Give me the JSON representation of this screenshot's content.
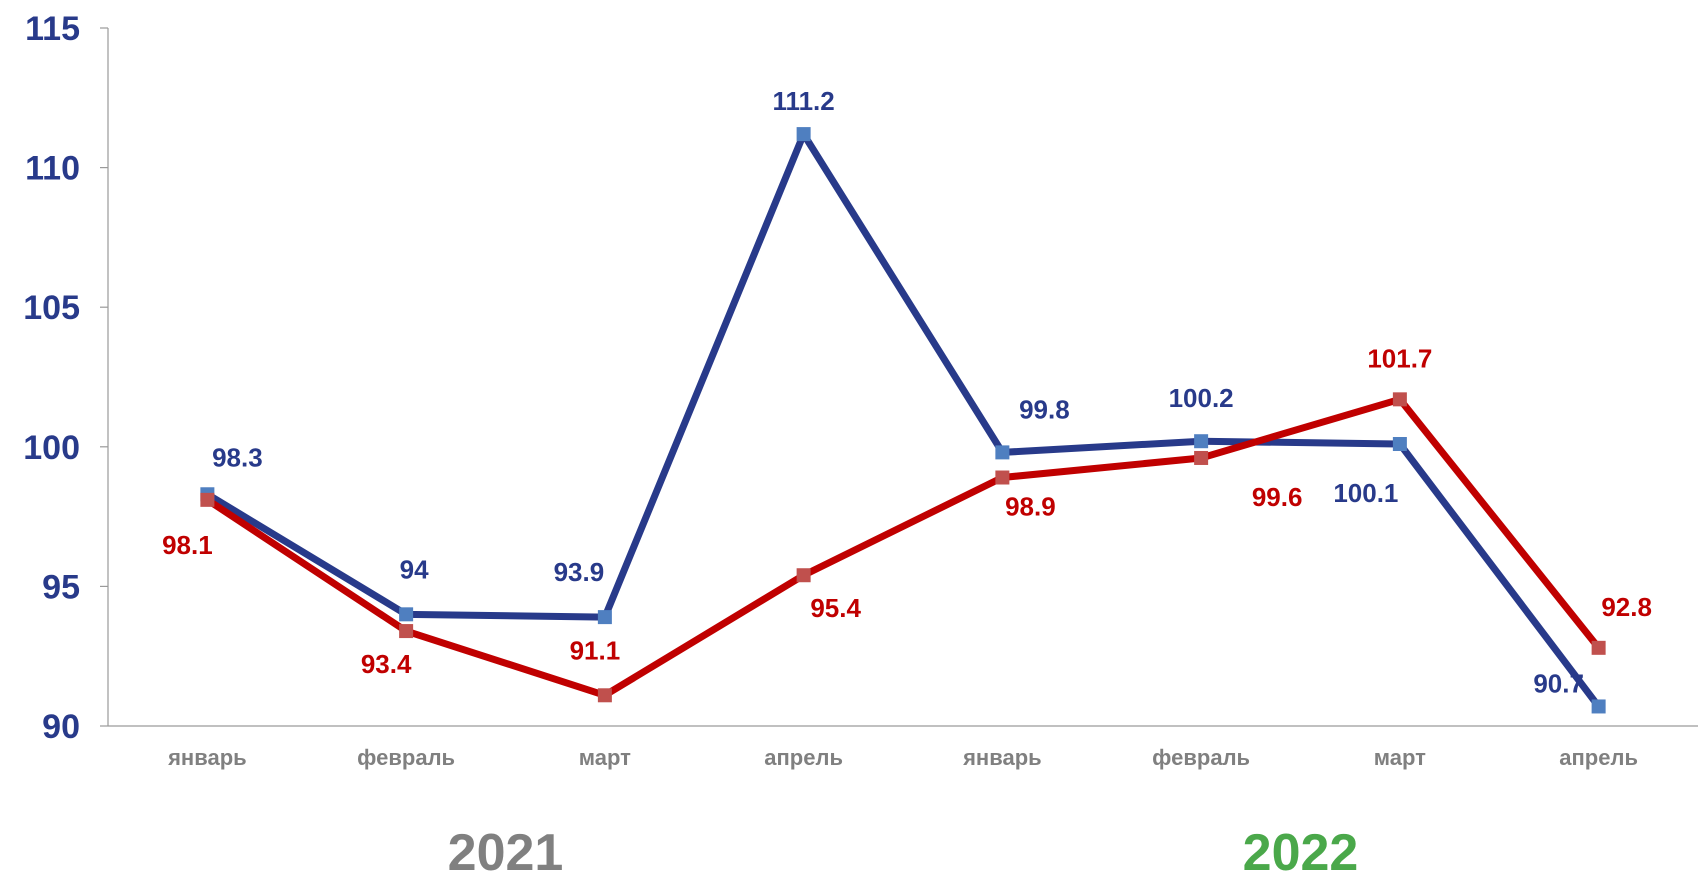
{
  "chart_data": {
    "type": "line",
    "categories": [
      "январь",
      "февраль",
      "март",
      "апрель",
      "январь",
      "февраль",
      "март",
      "апрель"
    ],
    "groups": [
      {
        "label": "2021",
        "color": "#808080"
      },
      {
        "label": "2022",
        "color": "#4aa84a"
      }
    ],
    "series": [
      {
        "values": [
          98.3,
          94,
          93.9,
          111.2,
          99.8,
          100.2,
          100.1,
          90.7
        ],
        "color": "#283a8a",
        "marker_color": "#4f7fc0"
      },
      {
        "values": [
          98.1,
          93.4,
          91.1,
          95.4,
          98.9,
          99.6,
          101.7,
          92.8
        ],
        "color": "#c00000",
        "marker_color": "#c0504d"
      }
    ],
    "ylim": [
      90,
      115
    ],
    "yticks": [
      "90",
      "95",
      "100",
      "105",
      "110",
      "115"
    ],
    "ytick_color": "#283a8a",
    "xtick_color": "#808080",
    "grid": false
  }
}
